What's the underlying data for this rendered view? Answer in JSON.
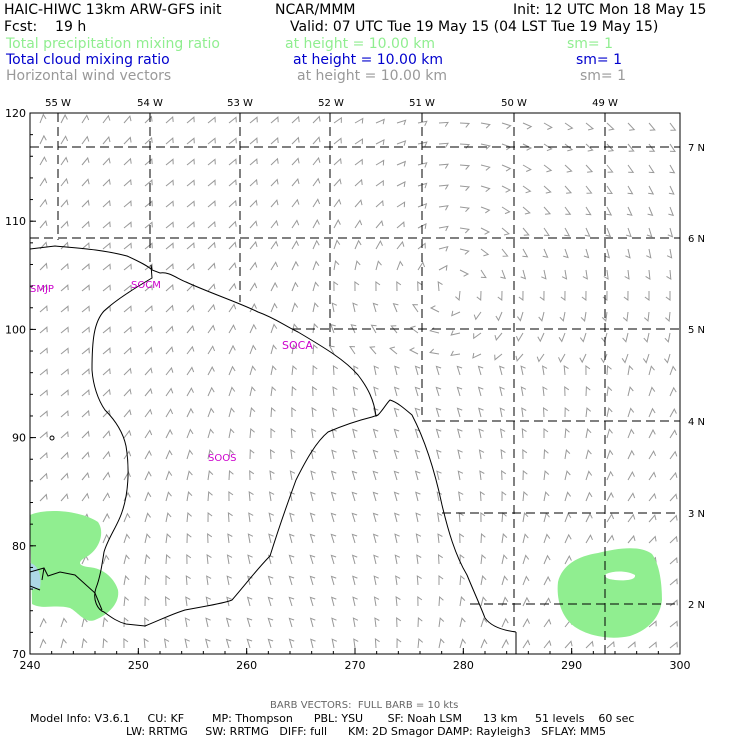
{
  "header": {
    "line1_left": "HAIC-HIWC 13km ARW-GFS init",
    "line1_mid": "NCAR/MMM",
    "line1_right": "Init: 12 UTC Mon 18 May 15",
    "fcst": "Fcst:    19 h",
    "valid": "Valid: 07 UTC Tue 19 May 15 (04 LST Tue 19 May 15)",
    "fields": [
      {
        "name": "Total precipitation mixing ratio",
        "height": "at height = 10.00 km",
        "sm": "sm= 1",
        "color": "#90ee90"
      },
      {
        "name": "Total cloud mixing ratio",
        "height": "at height = 10.00 km",
        "sm": "sm= 1",
        "color": "#0000cd"
      },
      {
        "name": "Horizontal wind vectors",
        "height": "at height = 10.00 km",
        "sm": "sm= 1",
        "color": "#999999"
      }
    ]
  },
  "map": {
    "x_axis": {
      "min": 240,
      "max": 300,
      "ticks": [
        "240",
        "250",
        "260",
        "270",
        "280",
        "290",
        "300"
      ]
    },
    "y_axis": {
      "min": 70,
      "max": 120,
      "ticks": [
        "70",
        "80",
        "90",
        "100",
        "110",
        "120"
      ]
    },
    "lon_labels": [
      "55 W",
      "54 W",
      "53 W",
      "52 W",
      "51 W",
      "50 W",
      "49 W"
    ],
    "lat_labels": [
      "7 N",
      "6 N",
      "5 N",
      "4 N",
      "3 N",
      "2 N"
    ],
    "region_labels": [
      "SMJP",
      "SOCM",
      "SOCA",
      "SOOS"
    ],
    "colors": {
      "precip": "#90ee90",
      "cloud": "#add8e6",
      "labels": "#cc00cc",
      "coast": "#000000",
      "barb": "#999999"
    }
  },
  "footer": {
    "barb": "BARB VECTORS:  FULL BARB = 10 kts",
    "model1": "Model Info: V3.6.1     CU: KF        MP: Thompson      PBL: YSU       SF: Noah LSM      13 km     51 levels    60 sec",
    "model2": "LW: RRTMG     SW: RRTMG   DIFF: full      KM: 2D Smagor DAMP: Rayleigh3   SFLAY: MM5"
  }
}
